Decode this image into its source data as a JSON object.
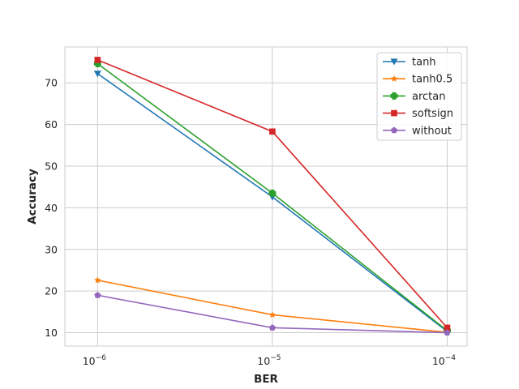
{
  "chart_data": {
    "type": "line",
    "title": "",
    "xlabel": "BER",
    "ylabel": "Accuracy",
    "x": [
      1e-06,
      1e-05,
      0.0001
    ],
    "x_scale": "log",
    "x_tick_labels": [
      {
        "base": "10",
        "exp": "−6"
      },
      {
        "base": "10",
        "exp": "−5"
      },
      {
        "base": "10",
        "exp": "−4"
      }
    ],
    "y_ticks": [
      10,
      20,
      30,
      40,
      50,
      60,
      70
    ],
    "xlim": [
      6.5e-07,
      0.00013
    ],
    "ylim": [
      6.8,
      78.6
    ],
    "grid": true,
    "legend_position": "top-right",
    "series": [
      {
        "name": "tanh",
        "values": [
          72.2,
          42.6,
          10.3
        ],
        "color": "#1f77b4",
        "marker": "triangle-down"
      },
      {
        "name": "tanh0.5",
        "values": [
          22.6,
          14.3,
          10.1
        ],
        "color": "#ff7f0e",
        "marker": "star"
      },
      {
        "name": "arctan",
        "values": [
          74.6,
          43.5,
          10.5
        ],
        "color": "#2ca02c",
        "marker": "plus"
      },
      {
        "name": "softsign",
        "values": [
          75.5,
          58.3,
          11.2
        ],
        "color": "#d62728",
        "marker": "square"
      },
      {
        "name": "without",
        "values": [
          19.0,
          11.2,
          10.0
        ],
        "color": "#9467bd",
        "marker": "pentagon"
      }
    ]
  }
}
